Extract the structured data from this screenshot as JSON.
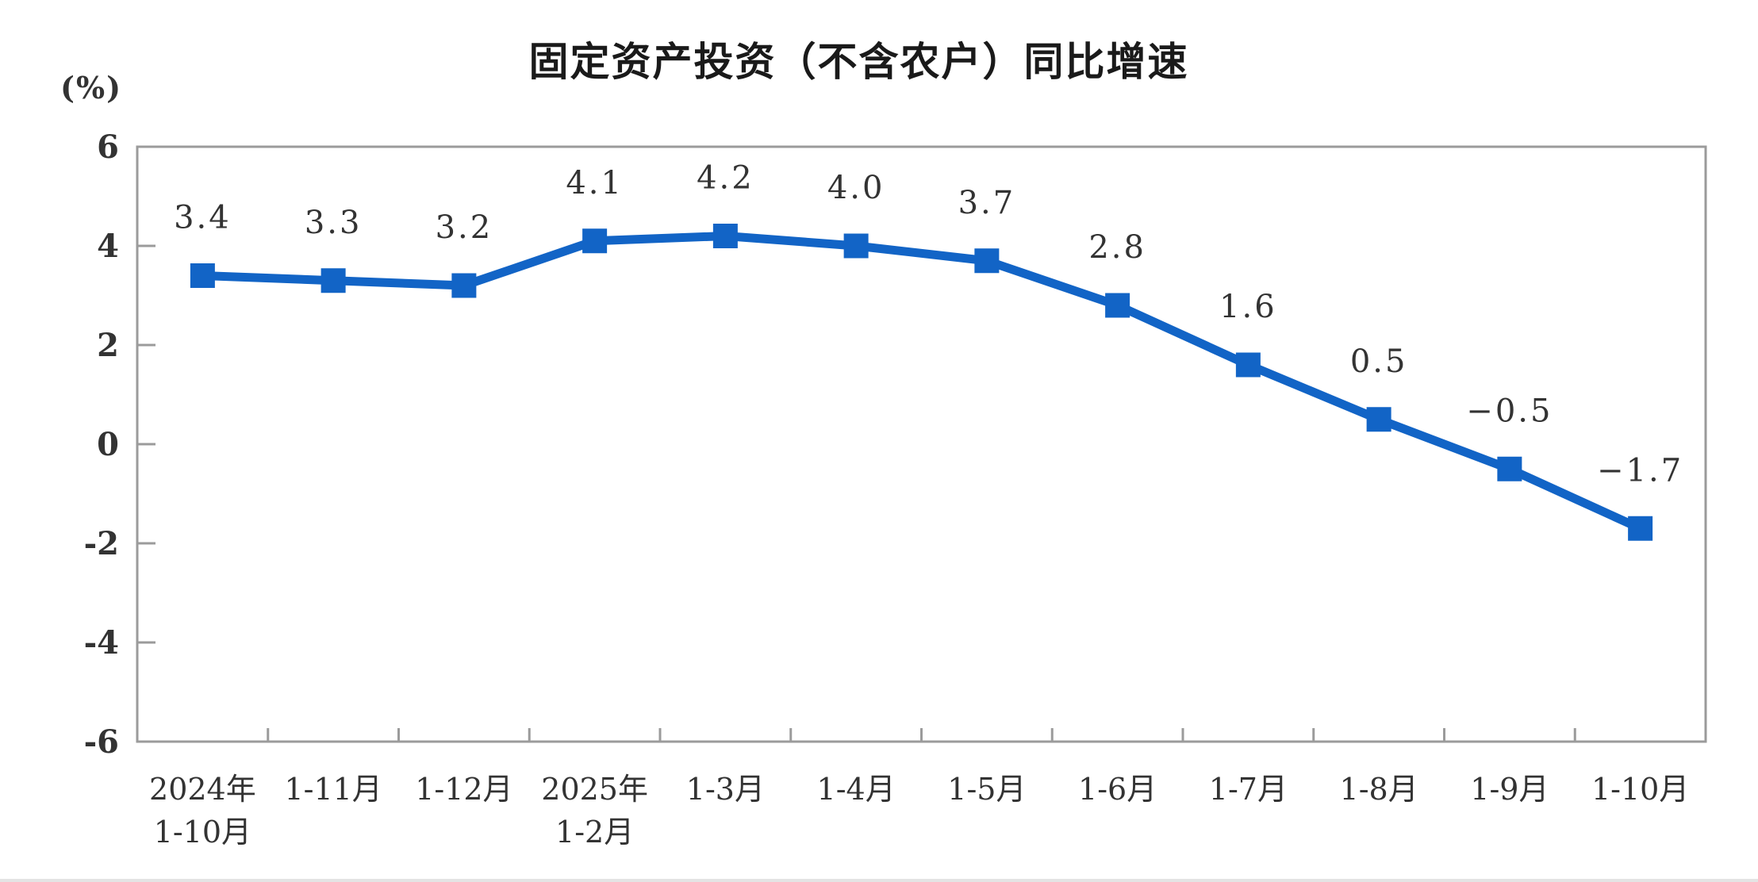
{
  "chart_data": {
    "type": "line",
    "title": "固定资产投资（不含农户）同比增速",
    "unit_label": "(%)",
    "categories": [
      "2024年1-10月",
      "1-11月",
      "1-12月",
      "2025年1-2月",
      "1-3月",
      "1-4月",
      "1-5月",
      "1-6月",
      "1-7月",
      "1-8月",
      "1-9月",
      "1-10月"
    ],
    "category_lines": [
      [
        "2024年",
        "1-10月"
      ],
      [
        "1-11月"
      ],
      [
        "1-12月"
      ],
      [
        "2025年",
        "1-2月"
      ],
      [
        "1-3月"
      ],
      [
        "1-4月"
      ],
      [
        "1-5月"
      ],
      [
        "1-6月"
      ],
      [
        "1-7月"
      ],
      [
        "1-8月"
      ],
      [
        "1-9月"
      ],
      [
        "1-10月"
      ]
    ],
    "series": [
      {
        "name": "固定资产投资（不含农户）同比增速",
        "values": [
          3.4,
          3.3,
          3.2,
          4.1,
          4.2,
          4.0,
          3.7,
          2.8,
          1.6,
          0.5,
          -0.5,
          -1.7
        ],
        "value_labels": [
          "3.4",
          "3.3",
          "3.2",
          "4.1",
          "4.2",
          "4.0",
          "3.7",
          "2.8",
          "1.6",
          "0.5",
          "−0.5",
          "−1.7"
        ]
      }
    ],
    "ylabel": "(%)",
    "xlabel": "",
    "ylim": [
      -6,
      6
    ],
    "ytick_step": 2,
    "ytick_labels": [
      "6",
      "4",
      "2",
      "0",
      "-2",
      "-4",
      "-6"
    ],
    "grid": false,
    "legend": "none",
    "marker": "square",
    "colors": {
      "line": "#1264c6",
      "marker": "#1264c6",
      "axis": "#9b9b9b",
      "text": "#333333",
      "title": "#1a1a1a"
    }
  }
}
